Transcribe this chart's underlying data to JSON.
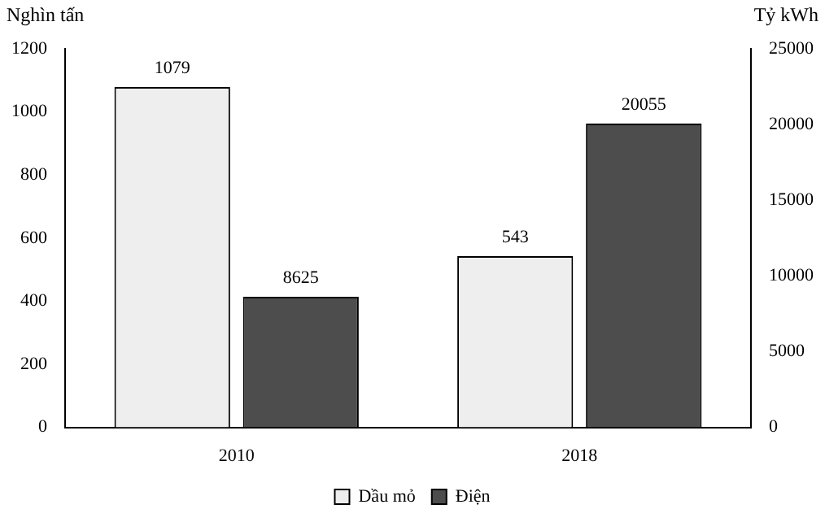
{
  "chart_data": {
    "type": "bar",
    "ylabel": "Nghìn tấn",
    "y2label": "Tỷ kWh",
    "categories": [
      "2010",
      "2018"
    ],
    "series": [
      {
        "name": "Dầu mỏ",
        "color": "#eeeeee",
        "values": [
          1079,
          543
        ]
      },
      {
        "name": "Điện",
        "color": "#4d4d4d",
        "values": [
          8625,
          20055
        ],
        "axis": "y2"
      }
    ],
    "ylim": [
      0,
      1200
    ],
    "yticks": [
      0,
      200,
      400,
      600,
      800,
      1000,
      1200
    ],
    "y2lim": [
      0,
      25000
    ],
    "y2ticks": [
      0,
      5000,
      10000,
      15000,
      20000,
      25000
    ],
    "data_labels": true,
    "grid": false,
    "legend": "bottom"
  }
}
